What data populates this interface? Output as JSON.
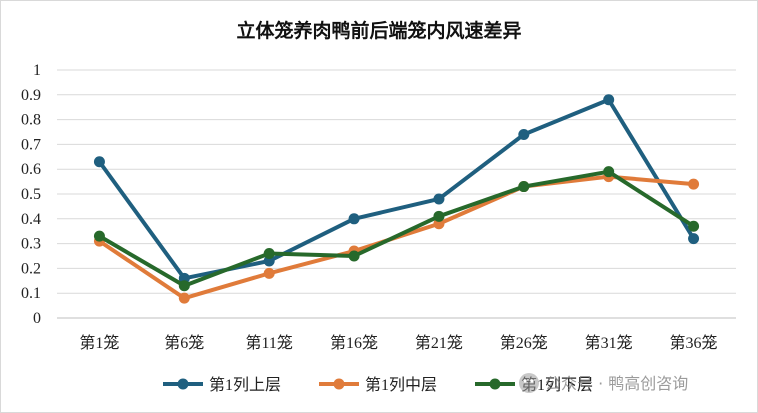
{
  "chart_data": {
    "type": "line",
    "title": "立体笼养肉鸭前后端笼内风速差异",
    "xlabel": "",
    "ylabel": "",
    "categories": [
      "第1笼",
      "第6笼",
      "第11笼",
      "第16笼",
      "第21笼",
      "第26笼",
      "第31笼",
      "第36笼"
    ],
    "ylim": [
      0,
      1
    ],
    "yticks": [
      "0",
      "0.1",
      "0.2",
      "0.3",
      "0.4",
      "0.5",
      "0.6",
      "0.7",
      "0.8",
      "0.9",
      "1"
    ],
    "grid": true,
    "legend_position": "bottom",
    "series": [
      {
        "name": "第1列上层",
        "color": "#1f5f7f",
        "values": [
          0.63,
          0.16,
          0.23,
          0.4,
          0.48,
          0.74,
          0.88,
          0.32
        ]
      },
      {
        "name": "第1列中层",
        "color": "#e07b3a",
        "values": [
          0.31,
          0.08,
          0.18,
          0.27,
          0.38,
          0.53,
          0.57,
          0.54
        ]
      },
      {
        "name": "第1列下层",
        "color": "#27692b",
        "values": [
          0.33,
          0.13,
          0.26,
          0.25,
          0.41,
          0.53,
          0.59,
          0.37
        ]
      }
    ]
  },
  "watermark": {
    "text": "公众号 · 鸭高创咨询"
  }
}
